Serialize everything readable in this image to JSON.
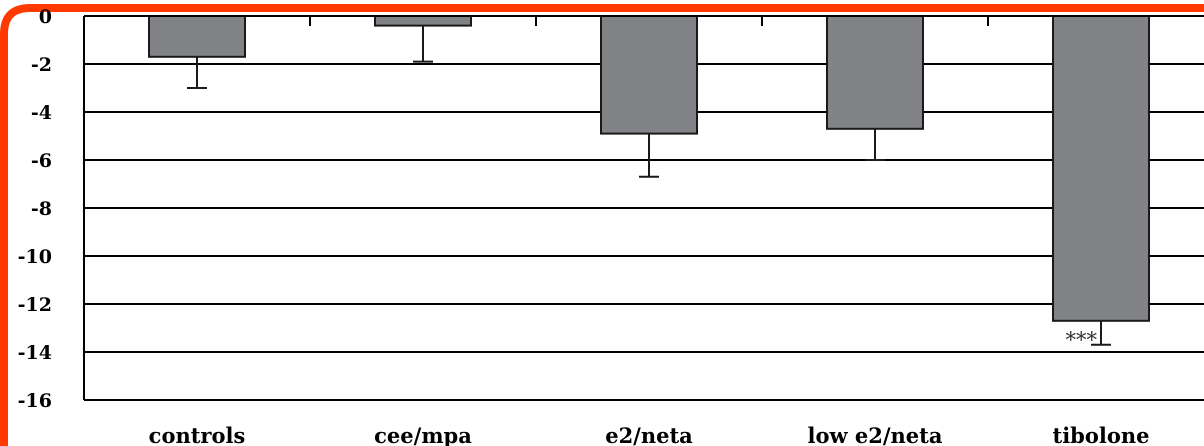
{
  "colors": {
    "bar_fill": "#808285",
    "bar_stroke": "#1a1a1a",
    "grid": "#000000",
    "frame": "#ff3a00"
  },
  "chart_data": {
    "type": "bar",
    "categories": [
      "controls",
      "cee/mpa",
      "e2/neta",
      "low e2/neta",
      "tibolone"
    ],
    "values": [
      -1.7,
      -0.4,
      -4.9,
      -4.7,
      -12.7
    ],
    "error_bars": [
      1.3,
      1.5,
      1.8,
      1.3,
      1.0
    ],
    "y_ticks": [
      "0",
      "-2",
      "-4",
      "-6",
      "-8",
      "-10",
      "-12",
      "-14",
      "-16"
    ],
    "ylim": [
      -16,
      0
    ],
    "grid": true,
    "annotations": [
      {
        "category": "tibolone",
        "text": "***"
      }
    ]
  }
}
